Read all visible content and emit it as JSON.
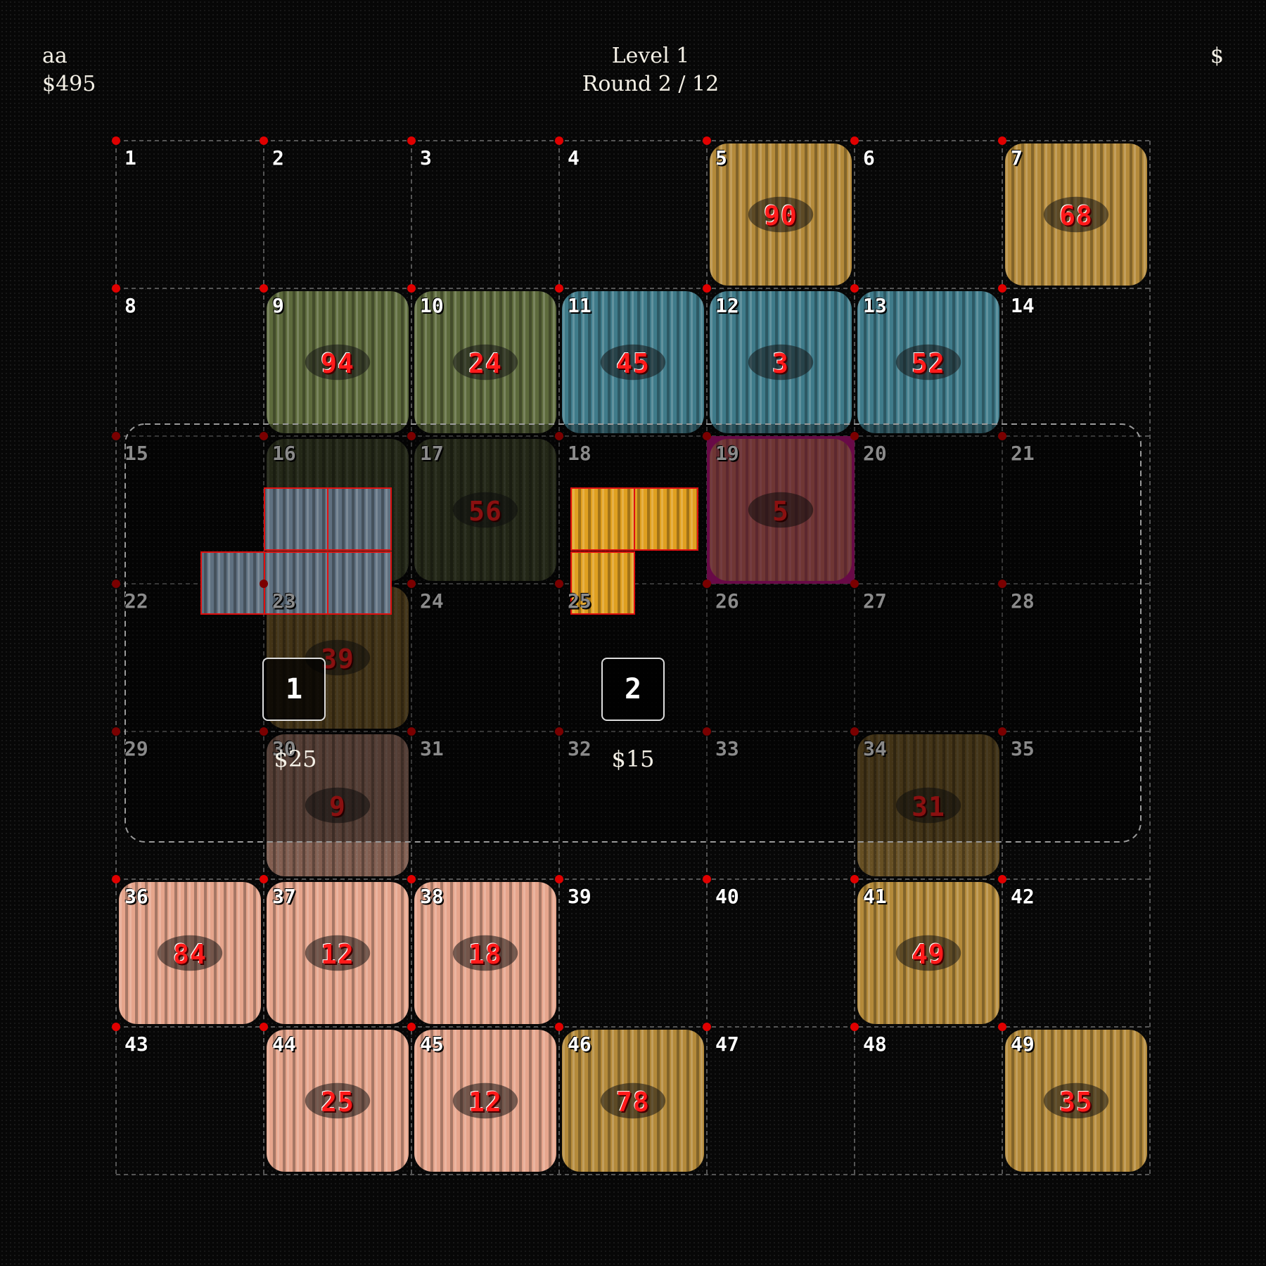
{
  "hud": {
    "player": "aa",
    "money": "$495",
    "level": "Level 1",
    "round": "Round 2 / 12",
    "right_symbol": "$"
  },
  "colors": {
    "gold_worm": "#b48a3a",
    "green_worm": "#5d6a3c",
    "blue_worm": "#3f7b8a",
    "pink_worm": "#e6a58c",
    "grey_worm": "#5f7080",
    "orange_worm": "#e0a020",
    "magenta_bg": "#a0106e",
    "value_red": "#ff1a1a"
  },
  "cells": [
    {
      "n": "1",
      "v": ""
    },
    {
      "n": "2",
      "v": ""
    },
    {
      "n": "3",
      "v": ""
    },
    {
      "n": "4",
      "v": ""
    },
    {
      "n": "5",
      "v": "90"
    },
    {
      "n": "6",
      "v": ""
    },
    {
      "n": "7",
      "v": "68"
    },
    {
      "n": "8",
      "v": ""
    },
    {
      "n": "9",
      "v": "94"
    },
    {
      "n": "10",
      "v": "24"
    },
    {
      "n": "11",
      "v": "45"
    },
    {
      "n": "12",
      "v": "3"
    },
    {
      "n": "13",
      "v": "52"
    },
    {
      "n": "14",
      "v": ""
    },
    {
      "n": "15",
      "v": ""
    },
    {
      "n": "16",
      "v": ""
    },
    {
      "n": "17",
      "v": "56"
    },
    {
      "n": "18",
      "v": ""
    },
    {
      "n": "19",
      "v": "5"
    },
    {
      "n": "20",
      "v": ""
    },
    {
      "n": "21",
      "v": ""
    },
    {
      "n": "22",
      "v": ""
    },
    {
      "n": "23",
      "v": "39"
    },
    {
      "n": "24",
      "v": ""
    },
    {
      "n": "25",
      "v": ""
    },
    {
      "n": "26",
      "v": ""
    },
    {
      "n": "27",
      "v": ""
    },
    {
      "n": "28",
      "v": ""
    },
    {
      "n": "29",
      "v": ""
    },
    {
      "n": "30",
      "v": "9"
    },
    {
      "n": "31",
      "v": ""
    },
    {
      "n": "32",
      "v": ""
    },
    {
      "n": "33",
      "v": ""
    },
    {
      "n": "34",
      "v": "31"
    },
    {
      "n": "35",
      "v": ""
    },
    {
      "n": "36",
      "v": "84"
    },
    {
      "n": "37",
      "v": "12"
    },
    {
      "n": "38",
      "v": "18"
    },
    {
      "n": "39",
      "v": ""
    },
    {
      "n": "40",
      "v": ""
    },
    {
      "n": "41",
      "v": "49"
    },
    {
      "n": "42",
      "v": ""
    },
    {
      "n": "43",
      "v": ""
    },
    {
      "n": "44",
      "v": "25"
    },
    {
      "n": "45",
      "v": "12"
    },
    {
      "n": "46",
      "v": "78"
    },
    {
      "n": "47",
      "v": ""
    },
    {
      "n": "48",
      "v": ""
    },
    {
      "n": "49",
      "v": "35"
    }
  ],
  "pieces": [
    {
      "worm": "gold",
      "cells": [
        "5"
      ]
    },
    {
      "worm": "gold",
      "cells": [
        "7"
      ]
    },
    {
      "worm": "green",
      "cells": [
        "9",
        "10",
        "16",
        "17"
      ]
    },
    {
      "worm": "blue",
      "cells": [
        "11",
        "12",
        "13"
      ]
    },
    {
      "worm": "gold",
      "cells": [
        "19"
      ],
      "highlight": "magenta"
    },
    {
      "worm": "gold",
      "cells": [
        "23"
      ]
    },
    {
      "worm": "gold",
      "cells": [
        "34"
      ]
    },
    {
      "worm": "pink",
      "cells": [
        "30",
        "36",
        "37",
        "38",
        "44",
        "45"
      ]
    },
    {
      "worm": "gold",
      "cells": [
        "41"
      ]
    },
    {
      "worm": "gold",
      "cells": [
        "46"
      ]
    },
    {
      "worm": "gold",
      "cells": [
        "49"
      ]
    }
  ],
  "shop": [
    {
      "slot": "1",
      "price": "$25",
      "worm": "grey"
    },
    {
      "slot": "2",
      "price": "$15",
      "worm": "orange"
    }
  ]
}
